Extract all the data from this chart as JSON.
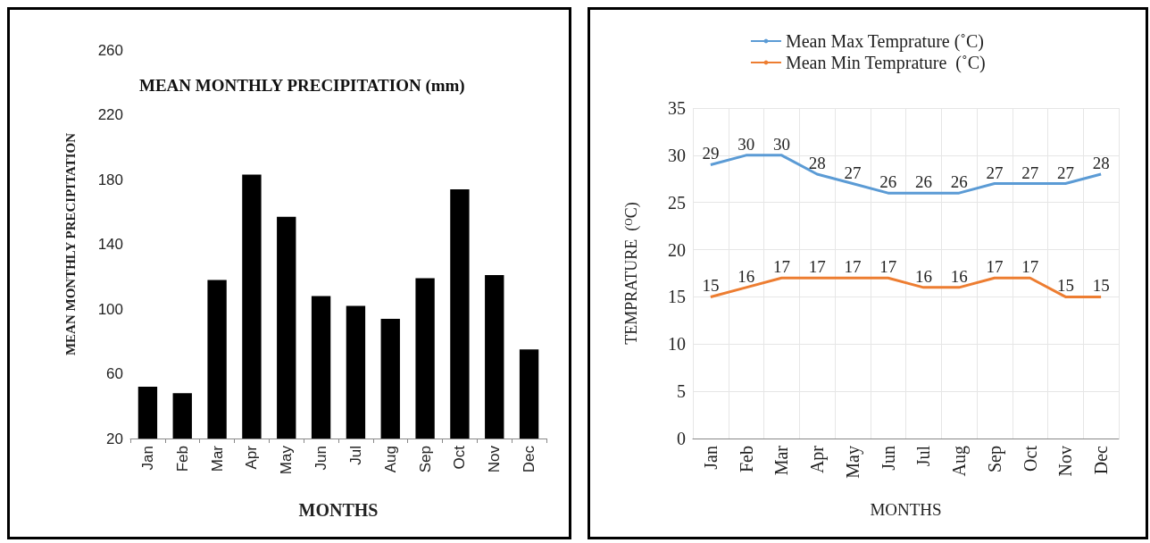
{
  "chart_data": [
    {
      "type": "bar",
      "title": "MEAN MONTHLY PRECIPITATION (mm)",
      "xlabel": "MONTHS",
      "ylabel": "MEAN MONTHLY PRECIPITATION",
      "categories": [
        "Jan",
        "Feb",
        "Mar",
        "Apr",
        "May",
        "Jun",
        "Jul",
        "Aug",
        "Sep",
        "Oct",
        "Nov",
        "Dec"
      ],
      "values": [
        52,
        48,
        118,
        183,
        157,
        108,
        102,
        94,
        119,
        174,
        121,
        75
      ],
      "color": "#000000",
      "ylim": [
        20,
        260
      ],
      "yticks": [
        20,
        60,
        100,
        140,
        180,
        220,
        260
      ],
      "grid": false,
      "legend": false
    },
    {
      "type": "line",
      "xlabel": "MONTHS",
      "ylabel": "TEMPRATURE  ($^{O}$C)",
      "categories": [
        "Jan",
        "Feb",
        "Mar",
        "Apr",
        "May",
        "Jun",
        "Jul",
        "Aug",
        "Sep",
        "Oct",
        "Nov",
        "Dec"
      ],
      "series": [
        {
          "name": "Mean Max Temprature (˚C)",
          "color": "#5b9bd5",
          "values": [
            29,
            30,
            30,
            28,
            27,
            26,
            26,
            26,
            27,
            27,
            27,
            28
          ]
        },
        {
          "name": "Mean Min Temprature  (˚C)",
          "color": "#ed7d31",
          "values": [
            15,
            16,
            17,
            17,
            17,
            17,
            16,
            16,
            17,
            17,
            15,
            15
          ]
        }
      ],
      "ylim": [
        0,
        35
      ],
      "yticks": [
        0,
        5,
        10,
        15,
        20,
        25,
        30,
        35
      ],
      "grid": true,
      "legend": "top",
      "data_labels": true,
      "marker": "none"
    }
  ]
}
